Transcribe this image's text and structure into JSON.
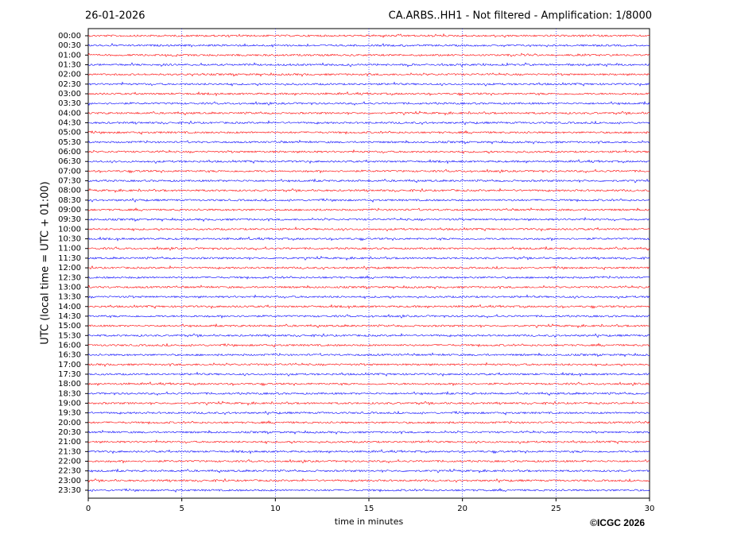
{
  "chart_data": {
    "type": "helicorder",
    "date": "26-01-2026",
    "title": "CA.ARBS..HH1 - Not filtered - Amplification: 1/8000",
    "ylabel": "UTC (local time = UTC + 01:00)",
    "xlabel": "time in minutes",
    "credit": "©ICGC 2026",
    "categories": [
      "00:00",
      "00:30",
      "01:00",
      "01:30",
      "02:00",
      "02:30",
      "03:00",
      "03:30",
      "04:00",
      "04:30",
      "05:00",
      "05:30",
      "06:00",
      "06:30",
      "07:00",
      "07:30",
      "08:00",
      "08:30",
      "09:00",
      "09:30",
      "10:00",
      "10:30",
      "11:00",
      "11:30",
      "12:00",
      "12:30",
      "13:00",
      "13:30",
      "14:00",
      "14:30",
      "15:00",
      "15:30",
      "16:00",
      "16:30",
      "17:00",
      "17:30",
      "18:00",
      "18:30",
      "19:00",
      "19:30",
      "20:00",
      "20:30",
      "21:00",
      "21:30",
      "22:00",
      "22:30",
      "23:00",
      "23:30"
    ],
    "xlim": [
      0,
      30
    ],
    "xticks": [
      0,
      5,
      10,
      15,
      20,
      25,
      30
    ],
    "grid": true,
    "colors": [
      "#ff0000",
      "#0000ff"
    ]
  }
}
